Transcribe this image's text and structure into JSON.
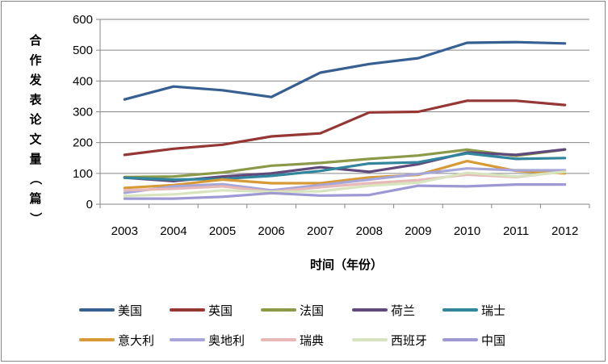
{
  "chart_data": {
    "type": "line",
    "title": "",
    "xlabel": "时间（年份）",
    "ylabel": "合作发表论文量（篇）",
    "ylim": [
      0,
      600
    ],
    "yticks": [
      0,
      100,
      200,
      300,
      400,
      500,
      600
    ],
    "grid": "horizontal",
    "legend_position": "bottom",
    "x": [
      "2003",
      "2004",
      "2005",
      "2006",
      "2007",
      "2008",
      "2009",
      "2010",
      "2011",
      "2012"
    ],
    "series": [
      {
        "name": "美国",
        "color": "#376092",
        "values": [
          340,
          382,
          370,
          348,
          427,
          455,
          474,
          524,
          526,
          522
        ]
      },
      {
        "name": "英国",
        "color": "#953735",
        "values": [
          160,
          180,
          193,
          220,
          230,
          298,
          300,
          336,
          336,
          322
        ]
      },
      {
        "name": "法国",
        "color": "#8A9A48",
        "values": [
          88,
          90,
          103,
          125,
          134,
          147,
          158,
          177,
          157,
          177
        ]
      },
      {
        "name": "荷兰",
        "color": "#604A7B",
        "values": [
          86,
          75,
          90,
          100,
          120,
          105,
          130,
          168,
          160,
          178
        ]
      },
      {
        "name": "瑞士",
        "color": "#31859C",
        "values": [
          86,
          80,
          82,
          92,
          108,
          132,
          136,
          165,
          147,
          150
        ]
      },
      {
        "name": "意大利",
        "color": "#D89A36",
        "values": [
          53,
          62,
          80,
          68,
          68,
          87,
          95,
          140,
          108,
          100
        ]
      },
      {
        "name": "奥地利",
        "color": "#A6A6D8",
        "values": [
          37,
          58,
          65,
          45,
          62,
          80,
          98,
          116,
          110,
          110
        ]
      },
      {
        "name": "瑞典",
        "color": "#E6B9B8",
        "values": [
          45,
          50,
          58,
          40,
          55,
          68,
          78,
          96,
          88,
          106
        ]
      },
      {
        "name": "西班牙",
        "color": "#D7E4BD",
        "values": [
          27,
          32,
          45,
          40,
          42,
          60,
          70,
          102,
          90,
          105
        ]
      },
      {
        "name": "中国",
        "color": "#9E98D3",
        "values": [
          18,
          18,
          24,
          36,
          28,
          30,
          60,
          58,
          64,
          64
        ]
      }
    ]
  }
}
